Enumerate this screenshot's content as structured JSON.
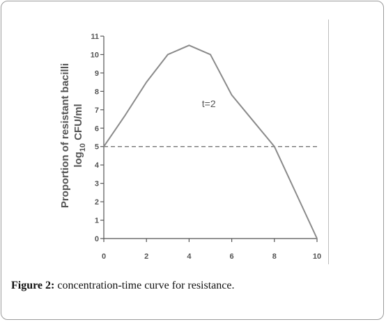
{
  "figure": {
    "label": "Figure 2:",
    "caption": " concentration-time curve for resistance."
  },
  "chart_data": {
    "type": "line",
    "ylabel_line1": "Proportion of resistant bacilli",
    "ylabel_line2_main": "log",
    "ylabel_line2_sub": "10",
    "ylabel_line2_rest": " CFU/ml",
    "annotation": "t=2",
    "xlim": [
      0,
      10
    ],
    "ylim": [
      0,
      11
    ],
    "xticks": [
      0,
      2,
      4,
      6,
      8,
      10
    ],
    "yticks": [
      0,
      1,
      2,
      3,
      4,
      5,
      6,
      7,
      8,
      9,
      10,
      11
    ],
    "series": [
      {
        "x": [
          0,
          1,
          2,
          3,
          4,
          5,
          6,
          7,
          8,
          9,
          10
        ],
        "values": [
          5,
          6.7,
          8.5,
          10,
          10.5,
          10,
          7.8,
          6.4,
          5,
          2.5,
          0
        ]
      }
    ],
    "reference_line": {
      "y": 5,
      "style": "dashed"
    },
    "grid": false,
    "line_color": "#8a8a8a"
  }
}
